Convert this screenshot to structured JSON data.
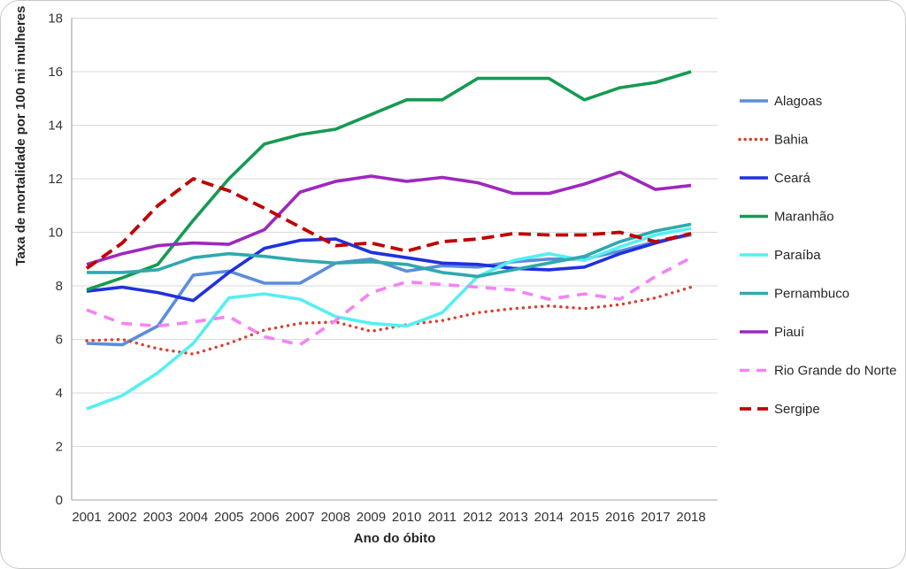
{
  "card": {
    "background": "#ffffff",
    "border_color": "#c9c9c9"
  },
  "chart_data": {
    "type": "line",
    "title": "",
    "xlabel": "Ano do óbito",
    "ylabel": "Taxa de mortalidade por 100 mi mulheres",
    "x": [
      2001,
      2002,
      2003,
      2004,
      2005,
      2006,
      2007,
      2008,
      2009,
      2010,
      2011,
      2012,
      2013,
      2014,
      2015,
      2016,
      2017,
      2018
    ],
    "ylim": [
      0,
      18
    ],
    "yticks": [
      0,
      2,
      4,
      6,
      8,
      10,
      12,
      14,
      16,
      18
    ],
    "grid": true,
    "legend_position": "right",
    "axis_color": "#a6a6a6",
    "grid_color": "#d9d9d9",
    "series": [
      {
        "name": "Alagoas",
        "color": "#5b8dd9",
        "style": "solid",
        "values": [
          5.85,
          5.8,
          6.5,
          8.4,
          8.55,
          8.1,
          8.1,
          8.85,
          9.0,
          8.55,
          8.75,
          8.7,
          8.9,
          9.0,
          9.0,
          9.3,
          9.65,
          9.9
        ]
      },
      {
        "name": "Bahia",
        "color": "#d9402f",
        "style": "dotted",
        "values": [
          5.95,
          6.0,
          5.65,
          5.45,
          5.85,
          6.35,
          6.6,
          6.65,
          6.3,
          6.55,
          6.7,
          7.0,
          7.15,
          7.25,
          7.15,
          7.3,
          7.55,
          7.95
        ]
      },
      {
        "name": "Ceará",
        "color": "#2031dd",
        "style": "solid",
        "values": [
          7.8,
          7.95,
          7.75,
          7.45,
          8.5,
          9.4,
          9.7,
          9.75,
          9.25,
          9.05,
          8.85,
          8.8,
          8.65,
          8.6,
          8.7,
          9.2,
          9.6,
          9.95
        ]
      },
      {
        "name": "Maranhão",
        "color": "#169a52",
        "style": "solid",
        "values": [
          7.85,
          8.3,
          8.8,
          10.45,
          12.0,
          13.3,
          13.65,
          13.85,
          14.4,
          14.95,
          14.95,
          15.75,
          15.75,
          15.75,
          14.95,
          15.4,
          15.6,
          16.0
        ]
      },
      {
        "name": "Paraíba",
        "color": "#55eff2",
        "style": "solid",
        "values": [
          3.4,
          3.9,
          4.75,
          5.85,
          7.55,
          7.7,
          7.5,
          6.85,
          6.6,
          6.5,
          7.0,
          8.35,
          8.95,
          9.2,
          8.95,
          9.45,
          9.9,
          10.15
        ]
      },
      {
        "name": "Pernambuco",
        "color": "#2fa9ad",
        "style": "solid",
        "values": [
          8.5,
          8.5,
          8.6,
          9.05,
          9.2,
          9.1,
          8.95,
          8.85,
          8.9,
          8.8,
          8.5,
          8.35,
          8.6,
          8.85,
          9.1,
          9.65,
          10.05,
          10.3
        ]
      },
      {
        "name": "Piauí",
        "color": "#9e28bd",
        "style": "solid",
        "values": [
          8.8,
          9.2,
          9.5,
          9.6,
          9.55,
          10.1,
          11.5,
          11.9,
          12.1,
          11.9,
          12.05,
          11.85,
          11.45,
          11.45,
          11.8,
          12.25,
          11.6,
          11.75
        ]
      },
      {
        "name": "Rio Grande do Norte",
        "color": "#f583f5",
        "style": "dashed",
        "values": [
          7.1,
          6.6,
          6.5,
          6.65,
          6.85,
          6.1,
          5.8,
          6.7,
          7.75,
          8.15,
          8.05,
          7.95,
          7.85,
          7.5,
          7.7,
          7.5,
          8.35,
          9.05
        ]
      },
      {
        "name": "Sergipe",
        "color": "#c00000",
        "style": "dashed-long",
        "values": [
          8.65,
          9.6,
          11.0,
          12.0,
          11.55,
          10.9,
          10.2,
          9.5,
          9.6,
          9.3,
          9.65,
          9.75,
          9.95,
          9.9,
          9.9,
          10.0,
          9.65,
          9.95
        ]
      }
    ]
  }
}
